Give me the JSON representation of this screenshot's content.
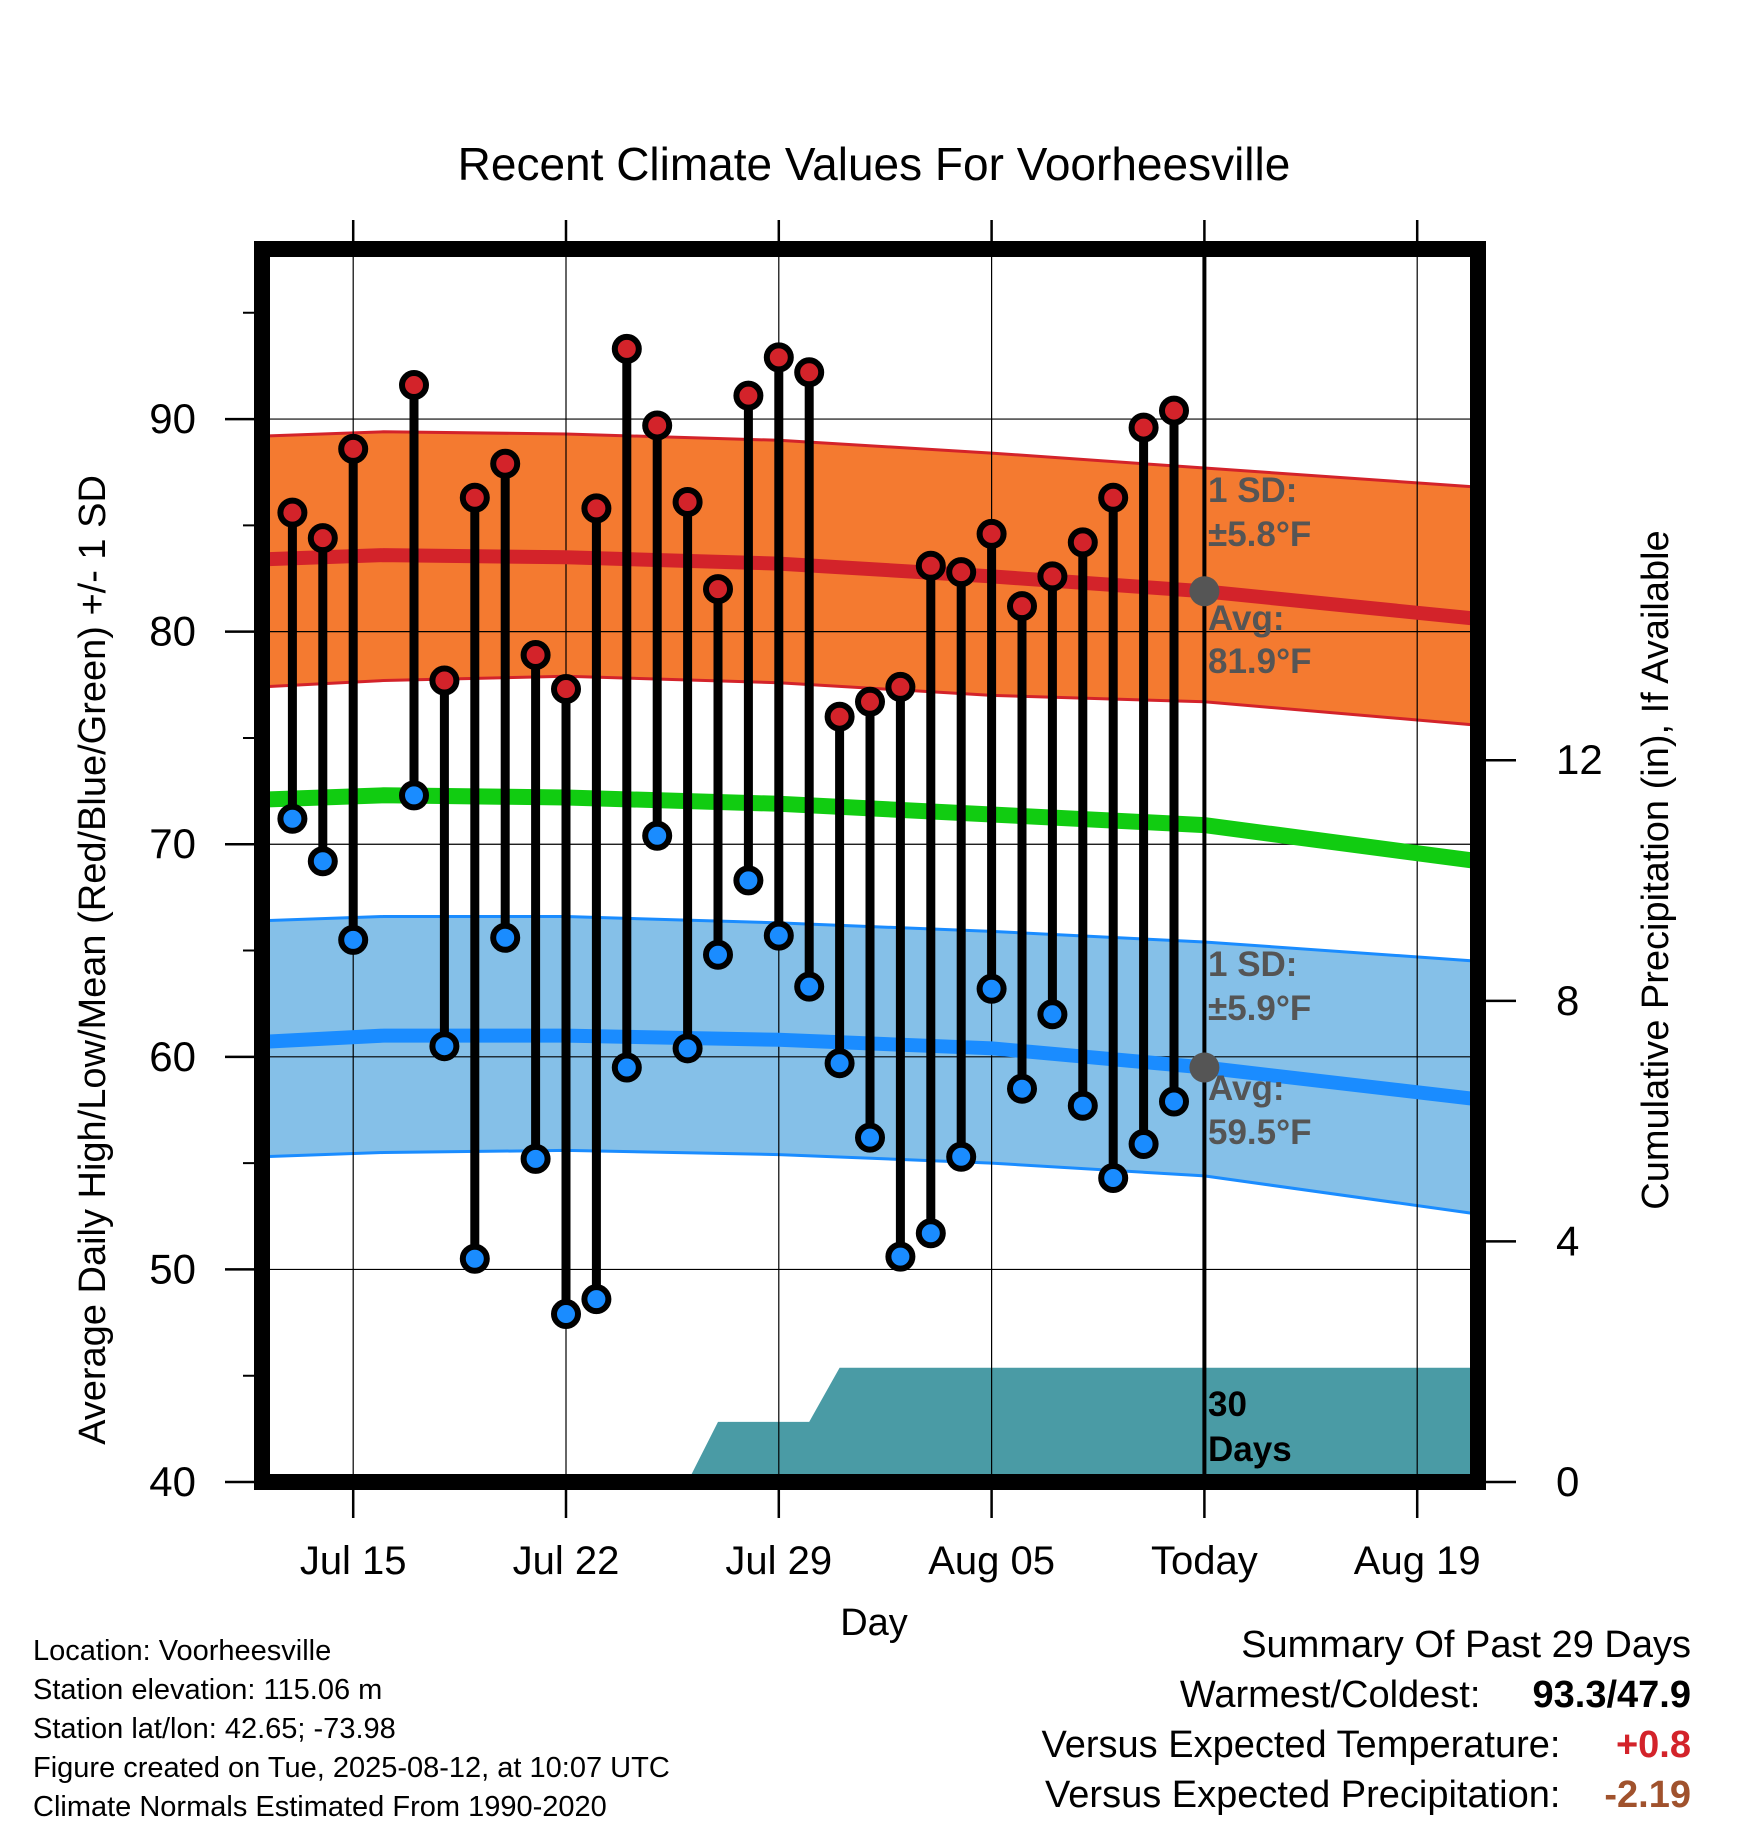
{
  "chart_data": {
    "type": "line",
    "title": "Recent Climate Values For Voorheesville",
    "xlabel": "Day",
    "ylabel": "Average Daily High/Low/Mean (Red/Blue/Green) +/- 1 SD",
    "y2label": "Cumulative Precipitation (in), If Available",
    "ylim": [
      40,
      98
    ],
    "y_ticks": [
      "40",
      "50",
      "60",
      "70",
      "80",
      "90"
    ],
    "y2lim": [
      0,
      20.5
    ],
    "y2_ticks": [
      "0",
      "4",
      "8",
      "12"
    ],
    "x_range": [
      "2025-07-12",
      "2025-08-21"
    ],
    "x_ticks": [
      {
        "date": "2025-07-15",
        "label": "Jul 15"
      },
      {
        "date": "2025-07-22",
        "label": "Jul 22"
      },
      {
        "date": "2025-07-29",
        "label": "Jul 29"
      },
      {
        "date": "2025-08-05",
        "label": "Aug 05"
      },
      {
        "date": "2025-08-12",
        "label": "Today"
      },
      {
        "date": "2025-08-19",
        "label": "Aug 19"
      }
    ],
    "today": "2025-08-12",
    "grid": true,
    "daily_observations": {
      "dates": [
        "2025-07-13",
        "2025-07-14",
        "2025-07-15",
        "2025-07-17",
        "2025-07-18",
        "2025-07-19",
        "2025-07-20",
        "2025-07-21",
        "2025-07-22",
        "2025-07-23",
        "2025-07-24",
        "2025-07-25",
        "2025-07-26",
        "2025-07-27",
        "2025-07-28",
        "2025-07-29",
        "2025-07-30",
        "2025-07-31",
        "2025-08-01",
        "2025-08-02",
        "2025-08-03",
        "2025-08-04",
        "2025-08-05",
        "2025-08-06",
        "2025-08-07",
        "2025-08-08",
        "2025-08-09",
        "2025-08-10",
        "2025-08-11"
      ],
      "high": [
        85.6,
        84.4,
        88.6,
        91.6,
        77.7,
        86.3,
        87.9,
        78.9,
        77.3,
        85.8,
        93.3,
        89.7,
        86.1,
        82.0,
        91.1,
        92.9,
        92.2,
        76.0,
        76.7,
        77.4,
        83.1,
        82.8,
        84.6,
        81.2,
        82.6,
        84.2,
        86.3,
        89.6,
        90.4
      ],
      "low": [
        71.2,
        69.2,
        65.5,
        72.3,
        60.5,
        50.5,
        65.6,
        55.2,
        47.9,
        48.6,
        59.5,
        70.4,
        60.4,
        64.8,
        68.3,
        65.7,
        63.3,
        59.7,
        56.2,
        50.6,
        51.7,
        55.3,
        63.2,
        58.5,
        62.0,
        57.7,
        54.3,
        55.9,
        57.9
      ]
    },
    "normals": {
      "dates": [
        "2025-07-12",
        "2025-07-16",
        "2025-07-22",
        "2025-07-29",
        "2025-08-05",
        "2025-08-12",
        "2025-08-21"
      ],
      "avg_high": [
        83.4,
        83.6,
        83.5,
        83.2,
        82.6,
        81.9,
        80.6
      ],
      "high_plus_1sd": [
        89.2,
        89.4,
        89.3,
        89.0,
        88.4,
        87.7,
        86.8
      ],
      "high_minus_1sd": [
        77.4,
        77.7,
        77.9,
        77.6,
        77.0,
        76.7,
        75.6
      ],
      "avg_mean": [
        72.1,
        72.3,
        72.2,
        71.9,
        71.4,
        70.9,
        69.2
      ],
      "avg_low": [
        60.7,
        61.0,
        61.0,
        60.8,
        60.4,
        59.5,
        58.0
      ],
      "low_plus_1sd": [
        66.4,
        66.6,
        66.6,
        66.3,
        65.9,
        65.4,
        64.5
      ],
      "low_minus_1sd": [
        55.3,
        55.5,
        55.6,
        55.4,
        55.0,
        54.4,
        52.6
      ]
    },
    "precipitation": {
      "series": [
        {
          "date": "2025-07-26",
          "value": 0.0
        },
        {
          "date": "2025-07-27",
          "value": 1.0
        },
        {
          "date": "2025-07-30",
          "value": 1.0
        },
        {
          "date": "2025-07-31",
          "value": 1.9
        },
        {
          "date": "2025-08-21",
          "value": 1.9
        }
      ],
      "label_line1": "30",
      "label_line2": "Days"
    },
    "annotations": {
      "high_sd_line1": "1 SD:",
      "high_sd_line2": "±5.8°F",
      "high_avg_line1": "Avg:",
      "high_avg_line2": "81.9°F",
      "low_sd_line1": "1 SD:",
      "low_sd_line2": "±5.9°F",
      "low_avg_line1": "Avg:",
      "low_avg_line2": "59.5°F"
    },
    "colors": {
      "high_band": "#f47a30",
      "high_line": "#d3232a",
      "mean_line": "#11cc11",
      "low_band": "#85c0e8",
      "low_line": "#1a8cff",
      "high_dot": "#d3232a",
      "low_dot": "#1a8cff",
      "precip_fill": "#4a9ba5",
      "annotation_text": "#555555"
    }
  },
  "info": {
    "location": "Location: Voorheesville",
    "elevation": "Station elevation: 115.06 m",
    "latlon": "Station lat/lon: 42.65; -73.98",
    "created": "Figure created on Tue, 2025-08-12, at 10:07 UTC",
    "normals": "Climate Normals Estimated From 1990-2020"
  },
  "summary": {
    "heading": "Summary Of Past 29 Days",
    "warm_cold_label": "Warmest/Coldest:",
    "warm_cold_value": "93.3/47.9",
    "temp_label": "Versus Expected Temperature:",
    "temp_value": "+0.8",
    "temp_color": "#d3232a",
    "precip_label": "Versus Expected Precipitation:",
    "precip_value": "-2.19",
    "precip_color": "#a0522d"
  }
}
